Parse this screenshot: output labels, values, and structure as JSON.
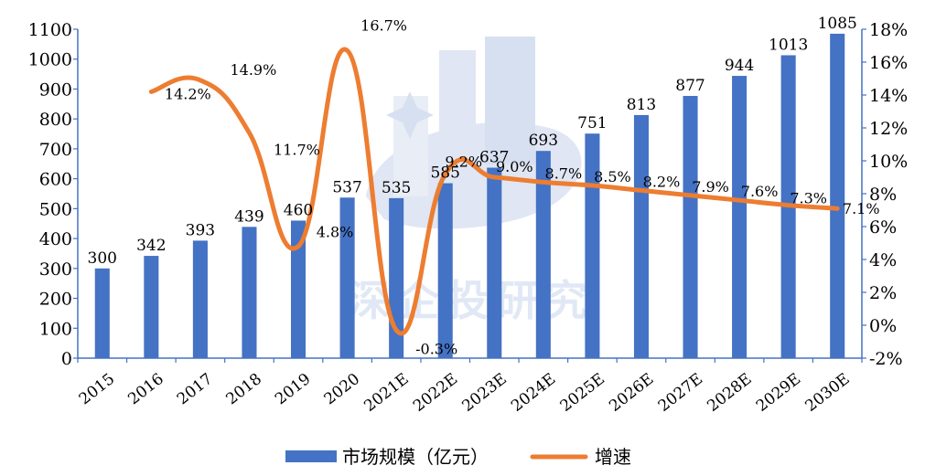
{
  "chart_data": {
    "type": "bar",
    "categories": [
      "2015",
      "2016",
      "2017",
      "2018",
      "2019",
      "2020",
      "2021E",
      "2022E",
      "2023E",
      "2024E",
      "2025E",
      "2026E",
      "2027E",
      "2028E",
      "2029E",
      "2030E"
    ],
    "series": [
      {
        "name": "市场规模（亿元）",
        "type": "bar",
        "axis": "left",
        "color": "#4472C4",
        "values": [
          300,
          342,
          393,
          439,
          460,
          537,
          535,
          585,
          637,
          693,
          751,
          813,
          877,
          944,
          1013,
          1085
        ],
        "labels": [
          "300",
          "342",
          "393",
          "439",
          "460",
          "537",
          "535",
          "585",
          "637",
          "693",
          "751",
          "813",
          "877",
          "944",
          "1013",
          "1085"
        ]
      },
      {
        "name": "增速",
        "type": "line",
        "axis": "right",
        "color": "#ED7D31",
        "values": [
          null,
          14.2,
          14.9,
          11.7,
          4.8,
          16.7,
          -0.3,
          9.2,
          9.0,
          8.7,
          8.5,
          8.2,
          7.9,
          7.6,
          7.3,
          7.1
        ],
        "labels": [
          "",
          "14.2%",
          "14.9%",
          "11.7%",
          "4.8%",
          "16.7%",
          "-0.3%",
          "9.2%",
          "9.0%",
          "8.7%",
          "8.5%",
          "8.2%",
          "7.9%",
          "7.6%",
          "7.3%",
          "7.1%"
        ]
      }
    ],
    "y_left": {
      "min": 0,
      "max": 1100,
      "step": 100,
      "ticks": [
        "0",
        "100",
        "200",
        "300",
        "400",
        "500",
        "600",
        "700",
        "800",
        "900",
        "1000",
        "1100"
      ]
    },
    "y_right": {
      "min": -2,
      "max": 18,
      "step": 2,
      "ticks": [
        "-2%",
        "0%",
        "2%",
        "4%",
        "6%",
        "8%",
        "10%",
        "12%",
        "14%",
        "16%",
        "18%"
      ]
    },
    "grid": false,
    "legend_position": "bottom",
    "watermark": "深企投研究"
  }
}
